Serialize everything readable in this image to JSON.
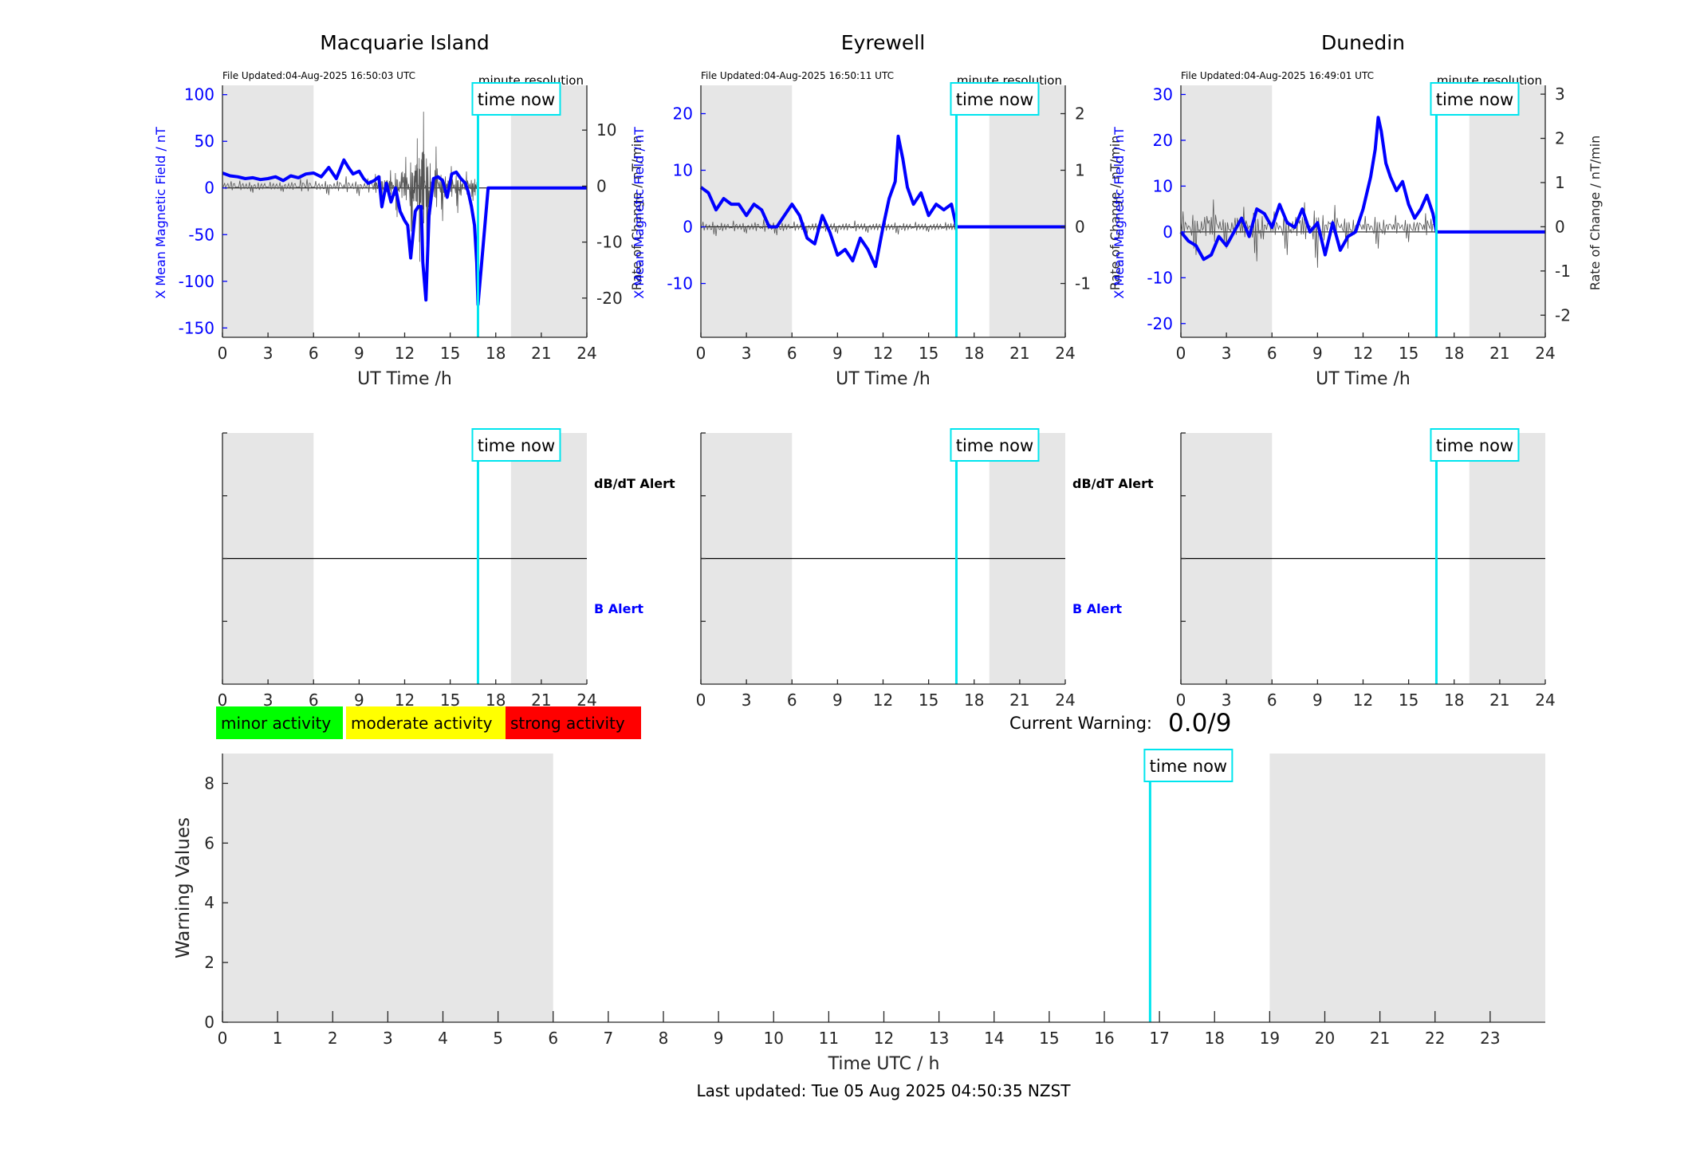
{
  "colors": {
    "field": "#0000ff",
    "rate": "#555555",
    "now_line": "#00e5ee",
    "night_shade": "#e6e6e6",
    "minor": "#00ff00",
    "moderate": "#ffff00",
    "strong": "#ff0000"
  },
  "common": {
    "time_now_label": "time now",
    "file_prefix": "File Updated:",
    "resolution": "minute resolution",
    "x_axis_label": "UT Time /h",
    "left_axis_label": "X Mean Magnetic Field / nT",
    "right_axis_label": "Rate of Change / nT/min",
    "alert_upper_label": "dB/dT Alert",
    "alert_lower_label": "B Alert"
  },
  "stations": [
    {
      "name": "Macquarie Island",
      "file_updated": "04-Aug-2025 16:50:03 UTC",
      "show_alert_labels": true
    },
    {
      "name": "Eyrewell",
      "file_updated": "04-Aug-2025 16:50:11 UTC",
      "show_alert_labels": true
    },
    {
      "name": "Dunedin",
      "file_updated": "04-Aug-2025 16:49:01 UTC",
      "show_alert_labels": false
    }
  ],
  "legend": {
    "minor": "minor activity",
    "moderate": "moderate activity",
    "strong": "strong activity"
  },
  "current_warning": {
    "label": "Current Warning:",
    "value": "0.0/9"
  },
  "warning_panel": {
    "x_label": "Time UTC / h",
    "y_label": "Warning Values"
  },
  "footer": {
    "last_updated": "Last updated: Tue 05 Aug 2025 04:50:35 NZST"
  },
  "chart_data": [
    {
      "type": "line",
      "title": "Macquarie Island",
      "xlabel": "UT Time /h",
      "ylabel": "X Mean Magnetic Field / nT",
      "y2label": "Rate of Change / nT/min",
      "xlim": [
        0,
        24
      ],
      "ylim": [
        -160,
        110
      ],
      "y2lim": [
        -27,
        18
      ],
      "xticks": [
        0,
        3,
        6,
        9,
        12,
        15,
        18,
        21,
        24
      ],
      "yticks": [
        -150,
        -100,
        -50,
        0,
        50,
        100
      ],
      "y2ticks": [
        -20,
        -10,
        0,
        10
      ],
      "now": 16.83,
      "shade": [
        [
          0,
          6
        ],
        [
          19,
          24
        ]
      ],
      "series": [
        {
          "axis": "left",
          "x": [
            0,
            0.5,
            1,
            1.5,
            2,
            2.5,
            3,
            3.5,
            4,
            4.5,
            5,
            5.5,
            6,
            6.5,
            7,
            7.5,
            8,
            8.3,
            8.6,
            9,
            9.3,
            9.6,
            10,
            10.3,
            10.5,
            10.8,
            11.1,
            11.4,
            11.7,
            12,
            12.2,
            12.4,
            12.7,
            12.9,
            13.1,
            13.2,
            13.4,
            13.6,
            13.9,
            14.2,
            14.5,
            14.8,
            15.1,
            15.4,
            15.7,
            16,
            16.2,
            16.4,
            16.6,
            16.75,
            16.83,
            17.5,
            18,
            20,
            22,
            24
          ],
          "y": [
            16,
            13,
            12,
            10,
            11,
            9,
            10,
            12,
            8,
            13,
            11,
            15,
            16,
            12,
            22,
            10,
            30,
            22,
            15,
            18,
            10,
            5,
            8,
            12,
            -20,
            5,
            -15,
            0,
            -25,
            -35,
            -40,
            -75,
            -25,
            -20,
            -20,
            -80,
            -120,
            -30,
            10,
            12,
            8,
            -10,
            15,
            17,
            10,
            5,
            -5,
            -20,
            -40,
            -80,
            -125,
            0,
            0,
            0,
            0,
            0
          ]
        },
        {
          "axis": "right",
          "x": [
            0,
            1,
            2,
            3,
            4,
            5,
            6,
            7,
            8,
            9,
            10,
            10.5,
            11,
            11.5,
            12,
            12.5,
            12.8,
            13,
            13.2,
            13.5,
            14,
            14.5,
            15,
            15.5,
            16,
            16.5,
            16.83
          ],
          "y": [
            0,
            0.5,
            -0.5,
            0.3,
            -0.4,
            0.6,
            0.5,
            -0.8,
            1.2,
            -0.9,
            1.8,
            -2.5,
            2.5,
            -3.5,
            5,
            -7,
            8,
            -9,
            12,
            -10,
            6,
            -4,
            3,
            -3,
            2,
            -1.5,
            0
          ]
        }
      ]
    },
    {
      "type": "line",
      "title": "Eyrewell",
      "xlabel": "UT Time /h",
      "ylabel": "X Mean Magnetic Field / nT",
      "y2label": "Rate of Change / nT/min",
      "xlim": [
        0,
        24
      ],
      "ylim": [
        -19.5,
        25
      ],
      "y2lim": [
        -1.95,
        2.5
      ],
      "xticks": [
        0,
        3,
        6,
        9,
        12,
        15,
        18,
        21,
        24
      ],
      "yticks": [
        -10,
        0,
        10,
        20
      ],
      "y2ticks": [
        -1,
        0,
        1,
        2
      ],
      "now": 16.83,
      "shade": [
        [
          0,
          6
        ],
        [
          19,
          24
        ]
      ],
      "series": [
        {
          "axis": "left",
          "x": [
            0,
            0.5,
            1,
            1.5,
            2,
            2.5,
            3,
            3.5,
            4,
            4.5,
            5,
            5.5,
            6,
            6.5,
            7,
            7.5,
            8,
            8.5,
            9,
            9.5,
            10,
            10.5,
            11,
            11.5,
            12,
            12.4,
            12.8,
            13,
            13.3,
            13.6,
            14,
            14.5,
            15,
            15.5,
            16,
            16.5,
            16.83,
            17.5,
            18,
            20,
            22,
            24
          ],
          "y": [
            7,
            6,
            3,
            5,
            4,
            4,
            2,
            4,
            3,
            0,
            0,
            2,
            4,
            2,
            -2,
            -3,
            2,
            -1,
            -5,
            -4,
            -6,
            -2,
            -4,
            -7,
            0,
            5,
            8,
            16,
            12,
            7,
            4,
            6,
            2,
            4,
            3,
            4,
            0,
            0,
            0,
            0,
            0,
            0
          ]
        },
        {
          "axis": "right",
          "x": [
            0,
            1,
            2,
            3,
            4,
            5,
            6,
            7,
            8,
            9,
            10,
            11,
            12,
            13,
            14,
            15,
            16,
            16.83
          ],
          "y": [
            0.05,
            -0.08,
            0.06,
            -0.05,
            0.08,
            -0.07,
            0.05,
            -0.06,
            0.07,
            -0.05,
            0.06,
            -0.04,
            0.05,
            -0.06,
            0.04,
            -0.03,
            0.03,
            0
          ]
        }
      ]
    },
    {
      "type": "line",
      "title": "Dunedin",
      "xlabel": "UT Time /h",
      "ylabel": "X Mean Magnetic Field / nT",
      "y2label": "Rate of Change / nT/min",
      "xlim": [
        0,
        24
      ],
      "ylim": [
        -23,
        32
      ],
      "y2lim": [
        -2.5,
        3.2
      ],
      "xticks": [
        0,
        3,
        6,
        9,
        12,
        15,
        18,
        21,
        24
      ],
      "yticks": [
        -20,
        -10,
        0,
        10,
        20,
        30
      ],
      "y2ticks": [
        -2,
        -1,
        0,
        1,
        2,
        3
      ],
      "now": 16.83,
      "shade": [
        [
          0,
          6
        ],
        [
          19,
          24
        ]
      ],
      "series": [
        {
          "axis": "left",
          "x": [
            0,
            0.5,
            1,
            1.5,
            2,
            2.5,
            3,
            3.5,
            4,
            4.5,
            5,
            5.5,
            6,
            6.5,
            7,
            7.5,
            8,
            8.5,
            9,
            9.5,
            10,
            10.5,
            11,
            11.5,
            12,
            12.5,
            12.8,
            13,
            13.2,
            13.5,
            13.8,
            14.2,
            14.6,
            15,
            15.4,
            15.8,
            16.2,
            16.6,
            16.83,
            17.5,
            18,
            20,
            22,
            24
          ],
          "y": [
            0,
            -2,
            -3,
            -6,
            -5,
            -1,
            -3,
            0,
            3,
            -1,
            5,
            4,
            1,
            6,
            2,
            1,
            5,
            0,
            2,
            -5,
            2,
            -4,
            -1,
            0,
            5,
            12,
            18,
            25,
            22,
            15,
            12,
            9,
            11,
            6,
            3,
            5,
            8,
            4,
            0,
            0,
            0,
            0,
            0,
            0
          ]
        },
        {
          "axis": "right",
          "x": [
            0,
            1,
            2,
            3,
            4,
            5,
            6,
            7,
            8,
            9,
            10,
            11,
            12,
            13,
            14,
            15,
            16,
            16.83
          ],
          "y": [
            0.3,
            -0.4,
            0.5,
            -0.3,
            0.4,
            -0.5,
            0.3,
            -0.4,
            0.5,
            -0.6,
            0.4,
            -0.3,
            0.2,
            -0.3,
            0.2,
            -0.2,
            0.2,
            0
          ]
        }
      ]
    },
    {
      "type": "line",
      "title": "",
      "xlabel": "Time UTC / h",
      "ylabel": "Warning Values",
      "xlim": [
        0,
        24
      ],
      "ylim": [
        0,
        9
      ],
      "xticks": [
        0,
        1,
        2,
        3,
        4,
        5,
        6,
        7,
        8,
        9,
        10,
        11,
        12,
        13,
        14,
        15,
        16,
        17,
        18,
        19,
        20,
        21,
        22,
        23
      ],
      "yticks": [
        0,
        2,
        4,
        6,
        8
      ],
      "now": 16.83,
      "shade": [
        [
          0,
          6
        ],
        [
          19,
          24
        ]
      ],
      "series": [
        {
          "x": [],
          "y": []
        }
      ],
      "current_warning": 0.0
    }
  ]
}
